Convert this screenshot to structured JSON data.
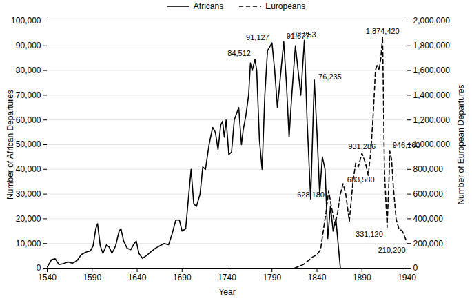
{
  "chart_data": {
    "type": "line",
    "xlabel": "Year",
    "ylabel": "Number of African Departures",
    "y2label": "Number of European Departures",
    "legend": "top",
    "grid": true,
    "xlim": [
      1540,
      1940
    ],
    "xticks": [
      1540,
      1590,
      1640,
      1690,
      1740,
      1790,
      1840,
      1890,
      1940
    ],
    "ylim": [
      0,
      100000
    ],
    "yticks": [
      0,
      {
        "value": 10000,
        "label": "10,000"
      },
      {
        "value": 20000,
        "label": "20,000"
      },
      {
        "value": 30000,
        "label": "30,000"
      },
      {
        "value": 40000,
        "label": "40,000"
      },
      {
        "value": 50000,
        "label": "50,000"
      },
      {
        "value": 60000,
        "label": "60,000"
      },
      {
        "value": 70000,
        "label": "70,000"
      },
      {
        "value": 80000,
        "label": "80,000"
      },
      {
        "value": 90000,
        "label": "90,000"
      },
      {
        "value": 100000,
        "label": "100,000"
      }
    ],
    "y2lim": [
      0,
      2000000
    ],
    "y2ticks": [
      0,
      {
        "value": 200000,
        "label": "200,000"
      },
      {
        "value": 400000,
        "label": "400,000"
      },
      {
        "value": 600000,
        "label": "600,000"
      },
      {
        "value": 800000,
        "label": "800,000"
      },
      {
        "value": 1000000,
        "label": "1,000,000"
      },
      {
        "value": 1200000,
        "label": "1,200,000"
      },
      {
        "value": 1400000,
        "label": "1,400,000"
      },
      {
        "value": 1600000,
        "label": "1,600,000"
      },
      {
        "value": 1800000,
        "label": "1,800,000"
      },
      {
        "value": 2000000,
        "label": "2,000,000"
      }
    ],
    "series": [
      {
        "name": "Africans",
        "color": "#000000",
        "line_style": "solid",
        "axis": "y",
        "x": [
          1540,
          1545,
          1549,
          1553,
          1558,
          1563,
          1568,
          1573,
          1578,
          1583,
          1588,
          1591,
          1594,
          1596,
          1599,
          1602,
          1606,
          1609,
          1612,
          1616,
          1620,
          1622,
          1625,
          1629,
          1633,
          1636,
          1639,
          1642,
          1646,
          1650,
          1655,
          1660,
          1665,
          1670,
          1675,
          1679,
          1683,
          1687,
          1690,
          1694,
          1698,
          1700,
          1703,
          1706,
          1710,
          1713,
          1716,
          1720,
          1724,
          1727,
          1730,
          1733,
          1735,
          1737,
          1739,
          1742,
          1745,
          1748,
          1751,
          1753,
          1756,
          1758,
          1761,
          1764,
          1766,
          1768,
          1771,
          1773,
          1776,
          1779,
          1782,
          1785,
          1790,
          1793,
          1796,
          1800,
          1803,
          1806,
          1809,
          1812,
          1816,
          1819,
          1822,
          1826,
          1829,
          1833,
          1837,
          1840,
          1843,
          1846,
          1849,
          1852,
          1855,
          1858,
          1861,
          1864,
          1866
        ],
        "values": [
          500,
          3500,
          3800,
          1500,
          1800,
          2500,
          2000,
          3000,
          5500,
          6500,
          7000,
          9000,
          16000,
          18000,
          9000,
          6000,
          9500,
          8500,
          6000,
          9000,
          15000,
          16000,
          11000,
          8000,
          7500,
          9500,
          11000,
          6000,
          4000,
          5000,
          6500,
          8000,
          9000,
          10000,
          9500,
          14000,
          19500,
          19500,
          15000,
          16000,
          32000,
          40000,
          26000,
          25000,
          30000,
          41000,
          40000,
          50000,
          57000,
          55000,
          48000,
          58000,
          59500,
          53000,
          60000,
          46000,
          47000,
          60000,
          63000,
          65000,
          50000,
          56000,
          62000,
          70000,
          83000,
          80000,
          84512,
          80000,
          52000,
          40000,
          70000,
          88000,
          91127,
          80000,
          65000,
          80000,
          91677,
          75000,
          53000,
          70000,
          90000,
          80000,
          70000,
          92253,
          60000,
          28000,
          76235,
          55000,
          30000,
          45000,
          40000,
          12000,
          25000,
          15000,
          20000,
          8000,
          0
        ]
      },
      {
        "name": "Europeans",
        "color": "#000000",
        "line_style": "dashed",
        "axis": "y2",
        "x": [
          1815,
          1820,
          1825,
          1830,
          1835,
          1840,
          1844,
          1847,
          1850,
          1853,
          1856,
          1860,
          1863,
          1866,
          1869,
          1872,
          1876,
          1880,
          1883,
          1886,
          1890,
          1894,
          1897,
          1900,
          1903,
          1905,
          1907,
          1909,
          1911,
          1913,
          1915,
          1918,
          1920,
          1921,
          1923,
          1925,
          1928,
          1931,
          1935,
          1940
        ],
        "values": [
          0,
          15000,
          30000,
          60000,
          90000,
          110000,
          150000,
          300000,
          450000,
          628180,
          500000,
          350000,
          450000,
          600000,
          683580,
          600000,
          380000,
          700000,
          850000,
          820000,
          931286,
          850000,
          750000,
          950000,
          1300000,
          1600000,
          1650000,
          1600000,
          1700000,
          1874420,
          800000,
          331120,
          700000,
          946160,
          880000,
          650000,
          400000,
          320000,
          300000,
          210200
        ]
      }
    ],
    "annotations": [
      {
        "series": "Africans",
        "x": 1771,
        "value": 84512,
        "label": "84,512"
      },
      {
        "series": "Africans",
        "x": 1790,
        "value": 91127,
        "label": "91,127"
      },
      {
        "series": "Africans",
        "x": 1803,
        "value": 91677,
        "label": "91,677"
      },
      {
        "series": "Africans",
        "x": 1826,
        "value": 92253,
        "label": "92,253"
      },
      {
        "series": "Africans",
        "x": 1837,
        "value": 76235,
        "label": "76,235"
      },
      {
        "series": "Europeans",
        "x": 1853,
        "value": 628180,
        "label": "628,180"
      },
      {
        "series": "Europeans",
        "x": 1869,
        "value": 683580,
        "label": "683,580"
      },
      {
        "series": "Europeans",
        "x": 1890,
        "value": 931286,
        "label": "931,286"
      },
      {
        "series": "Europeans",
        "x": 1913,
        "value": 1874420,
        "label": "1,874,420"
      },
      {
        "series": "Europeans",
        "x": 1921,
        "value": 946160,
        "label": "946,160"
      },
      {
        "series": "Europeans",
        "x": 1918,
        "value": 331120,
        "label": "331,120"
      },
      {
        "series": "Europeans",
        "x": 1940,
        "value": 210200,
        "label": "210,200"
      }
    ]
  }
}
